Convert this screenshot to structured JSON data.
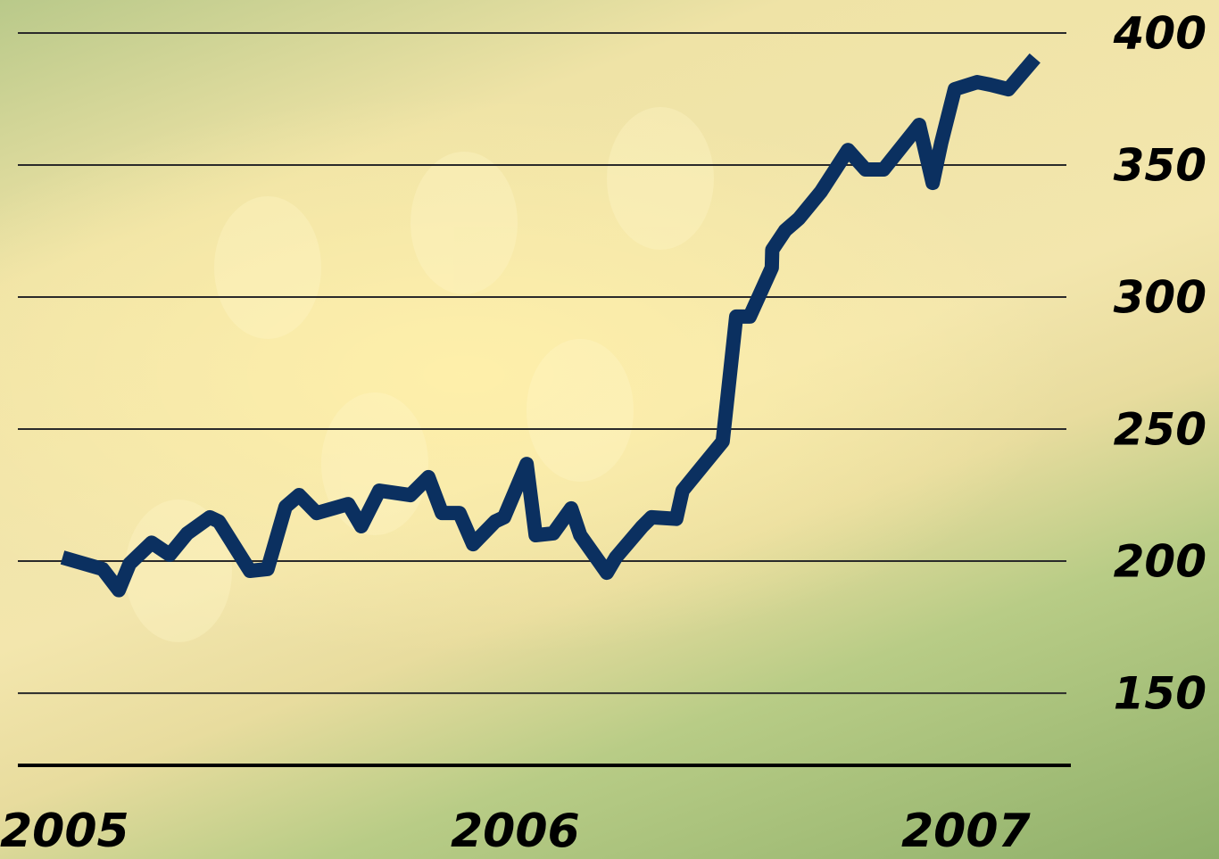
{
  "chart_data": {
    "type": "line",
    "x": [
      2005.0,
      2005.089,
      2005.125,
      2005.149,
      2005.198,
      2005.238,
      2005.277,
      2005.327,
      2005.347,
      2005.416,
      2005.455,
      2005.495,
      2005.525,
      2005.564,
      2005.634,
      2005.663,
      2005.703,
      2005.772,
      2005.812,
      2005.842,
      2005.881,
      2005.911,
      2005.96,
      2005.98,
      2006.03,
      2006.05,
      2006.089,
      2006.129,
      2006.149,
      2006.208,
      2006.228,
      2006.287,
      2006.307,
      2006.362,
      2006.376,
      2006.416,
      2006.465,
      2006.495,
      2006.525,
      2006.574,
      2006.575,
      2006.604,
      2006.634,
      2006.683,
      2006.743,
      2006.782,
      2006.822,
      2006.901,
      2006.931,
      2006.95,
      2006.98,
      2007.03,
      2007.059,
      2007.099,
      2007.158
    ],
    "series": [
      {
        "color": "#0b3060",
        "values": [
          201.4,
          197,
          189,
          199,
          207,
          202.4,
          210.5,
          216.6,
          215,
          196.3,
          197,
          220.6,
          225,
          218.2,
          221.6,
          213.2,
          226.7,
          225,
          231.8,
          218.2,
          218.2,
          206.4,
          215,
          216.6,
          236.8,
          209.8,
          210.5,
          220,
          209.8,
          195.6,
          201.4,
          213.2,
          216.6,
          216,
          226.7,
          235.1,
          245.3,
          292.6,
          292.6,
          311.1,
          317.9,
          325.3,
          329.7,
          339.9,
          355.7,
          348.3,
          348.3,
          365.2,
          343.2,
          358.4,
          378.7,
          381.4,
          380.4,
          378.7,
          390.5
        ]
      }
    ],
    "xlim": [
      2005,
      2007.2
    ],
    "xticks": [
      2005,
      2006,
      2007
    ],
    "ylim": [
      123,
      400
    ],
    "yticks": [
      150,
      200,
      250,
      300,
      350,
      400
    ],
    "grid": true
  }
}
